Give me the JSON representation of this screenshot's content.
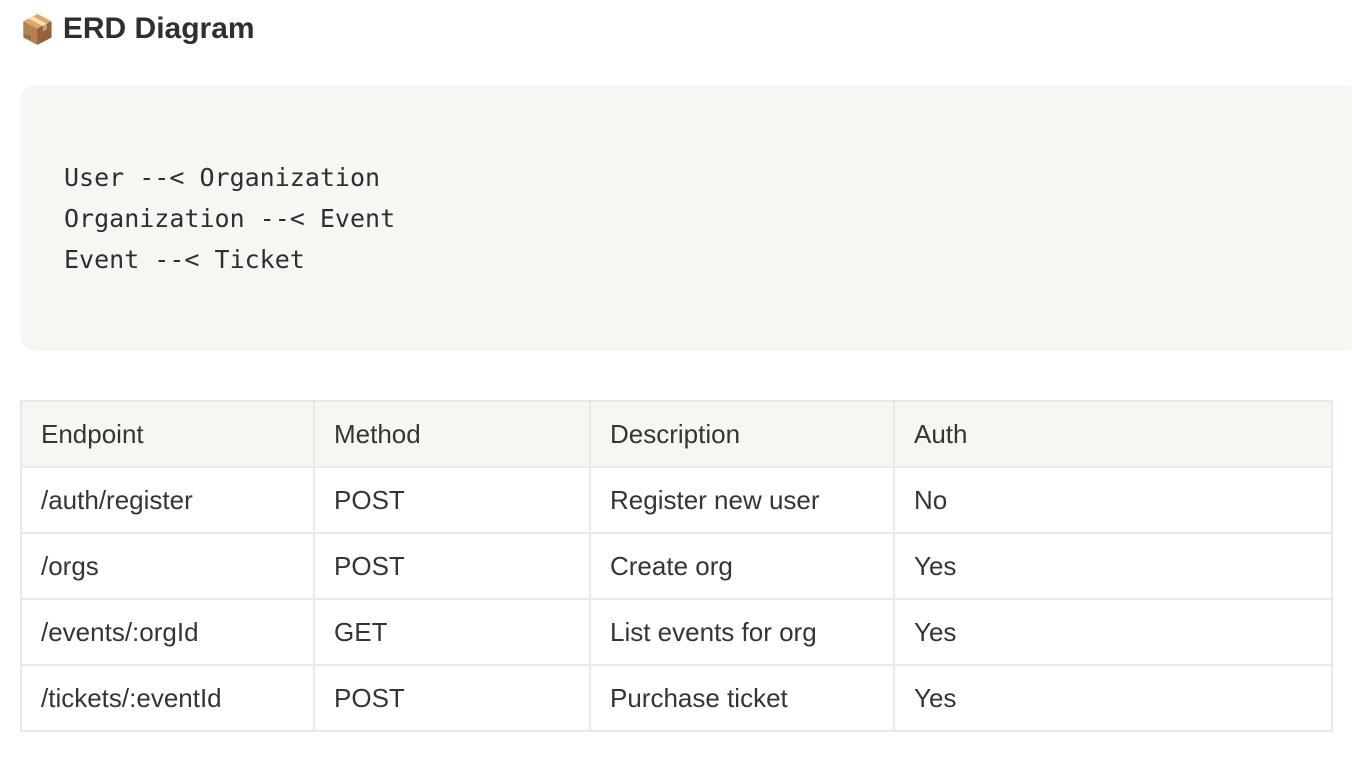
{
  "page": {
    "icon": "package-icon",
    "emoji": "📦",
    "title": "ERD Diagram"
  },
  "code_block": {
    "lines": [
      "User --< Organization",
      "Organization --< Event",
      "Event --< Ticket"
    ]
  },
  "table": {
    "headers": [
      "Endpoint",
      "Method",
      "Description",
      "Auth"
    ],
    "rows": [
      [
        "/auth/register",
        "POST",
        "Register new user",
        "No"
      ],
      [
        "/orgs",
        "POST",
        "Create org",
        "Yes"
      ],
      [
        "/events/:orgId",
        "GET",
        "List events for org",
        "Yes"
      ],
      [
        "/tickets/:eventId",
        "POST",
        "Purchase ticket",
        "Yes"
      ]
    ]
  }
}
